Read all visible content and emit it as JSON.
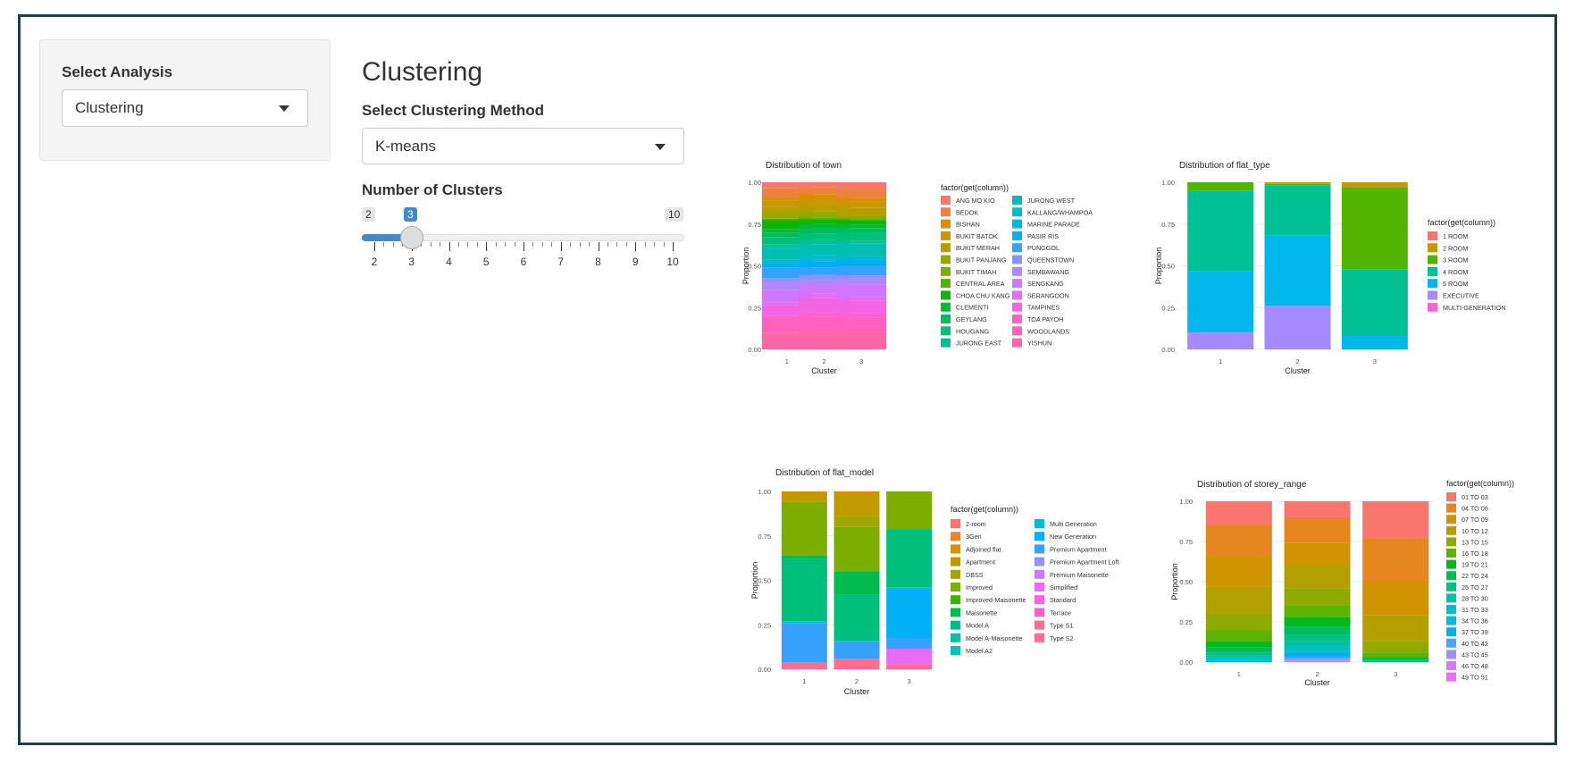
{
  "sidebar": {
    "label": "Select Analysis",
    "selected": "Clustering"
  },
  "main": {
    "title": "Clustering",
    "method_label": "Select Clustering Method",
    "method_selected": "K-means",
    "clusters_label": "Number of Clusters",
    "slider": {
      "min": 2,
      "max": 10,
      "value": 3,
      "min_label": "2",
      "max_label": "10",
      "value_label": "3",
      "tick_labels": [
        "2",
        "3",
        "4",
        "5",
        "6",
        "7",
        "8",
        "9",
        "10"
      ]
    }
  },
  "chart_data": [
    {
      "type": "bar",
      "title": "Distribution of town",
      "xlabel": "Cluster",
      "ylabel": "Proportion",
      "legend_title": "factor(get(column))",
      "categories": [
        "1",
        "2",
        "3"
      ],
      "ylim": [
        0,
        1
      ],
      "yticks": [
        "0.00",
        "0.25",
        "0.50",
        "0.75",
        "1.00"
      ],
      "series": [
        {
          "name": "ANG MO KIO",
          "color": "#F8766D",
          "values": [
            0.04,
            0.03,
            0.04
          ]
        },
        {
          "name": "BEDOK",
          "color": "#EC823C",
          "values": [
            0.06,
            0.05,
            0.06
          ]
        },
        {
          "name": "BISHAN",
          "color": "#DD8D00",
          "values": [
            0.02,
            0.03,
            0.02
          ]
        },
        {
          "name": "BUKIT BATOK",
          "color": "#C99800",
          "values": [
            0.04,
            0.04,
            0.04
          ]
        },
        {
          "name": "BUKIT MERAH",
          "color": "#B3A000",
          "values": [
            0.04,
            0.04,
            0.05
          ]
        },
        {
          "name": "BUKIT PANJANG",
          "color": "#99A800",
          "values": [
            0.04,
            0.03,
            0.02
          ]
        },
        {
          "name": "BUKIT TIMAH",
          "color": "#7AAE00",
          "values": [
            0.0,
            0.01,
            0.0
          ]
        },
        {
          "name": "CENTRAL AREA",
          "color": "#52B400",
          "values": [
            0.01,
            0.01,
            0.01
          ]
        },
        {
          "name": "CHOA CHU KANG",
          "color": "#0BB702",
          "values": [
            0.06,
            0.03,
            0.03
          ]
        },
        {
          "name": "CLEMENTI",
          "color": "#00BA38",
          "values": [
            0.02,
            0.03,
            0.02
          ]
        },
        {
          "name": "GEYLANG",
          "color": "#00BD5C",
          "values": [
            0.03,
            0.03,
            0.03
          ]
        },
        {
          "name": "HOUGANG",
          "color": "#00C07B",
          "values": [
            0.05,
            0.04,
            0.05
          ]
        },
        {
          "name": "JURONG EAST",
          "color": "#00C097",
          "values": [
            0.02,
            0.03,
            0.02
          ]
        },
        {
          "name": "JURONG WEST",
          "color": "#00BFB2",
          "values": [
            0.08,
            0.07,
            0.08
          ]
        },
        {
          "name": "KALLANG/WHAMPOA",
          "color": "#00BCCA",
          "values": [
            0.02,
            0.03,
            0.02
          ]
        },
        {
          "name": "MARINE PARADE",
          "color": "#00B6DE",
          "values": [
            0.0,
            0.01,
            0.0
          ]
        },
        {
          "name": "PASIR RIS",
          "color": "#00AEF2",
          "values": [
            0.03,
            0.04,
            0.04
          ]
        },
        {
          "name": "PUNGGOL",
          "color": "#35A2FF",
          "values": [
            0.07,
            0.05,
            0.06
          ]
        },
        {
          "name": "QUEENSTOWN",
          "color": "#8A94FF",
          "values": [
            0.02,
            0.03,
            0.02
          ]
        },
        {
          "name": "SEMBAWANG",
          "color": "#B385FF",
          "values": [
            0.06,
            0.04,
            0.04
          ]
        },
        {
          "name": "SENGKANG",
          "color": "#D177FF",
          "values": [
            0.08,
            0.05,
            0.08
          ]
        },
        {
          "name": "SERANGOON",
          "color": "#E76BF3",
          "values": [
            0.02,
            0.03,
            0.02
          ]
        },
        {
          "name": "TAMPINES",
          "color": "#F564E3",
          "values": [
            0.07,
            0.09,
            0.08
          ]
        },
        {
          "name": "TOA PAYOH",
          "color": "#FD61D1",
          "values": [
            0.02,
            0.03,
            0.03
          ]
        },
        {
          "name": "WOODLANDS",
          "color": "#FF61BC",
          "values": [
            0.09,
            0.1,
            0.09
          ]
        },
        {
          "name": "YISHUN",
          "color": "#FF67A4",
          "values": [
            0.11,
            0.11,
            0.11
          ]
        }
      ]
    },
    {
      "type": "bar",
      "title": "Distribution of flat_type",
      "xlabel": "Cluster",
      "ylabel": "Proportion",
      "legend_title": "factor(get(column))",
      "categories": [
        "1",
        "2",
        "3"
      ],
      "ylim": [
        0,
        1
      ],
      "yticks": [
        "0.00",
        "0.25",
        "0.50",
        "0.75",
        "1.00"
      ],
      "series": [
        {
          "name": "1 ROOM",
          "color": "#F8766D",
          "values": [
            0.0,
            0.0,
            0.0
          ]
        },
        {
          "name": "2 ROOM",
          "color": "#C49A00",
          "values": [
            0.0,
            0.01,
            0.03
          ]
        },
        {
          "name": "3 ROOM",
          "color": "#53B400",
          "values": [
            0.05,
            0.01,
            0.49
          ]
        },
        {
          "name": "4 ROOM",
          "color": "#00C094",
          "values": [
            0.48,
            0.3,
            0.4
          ]
        },
        {
          "name": "5 ROOM",
          "color": "#00B6EB",
          "values": [
            0.37,
            0.42,
            0.08
          ]
        },
        {
          "name": "EXECUTIVE",
          "color": "#A58AFF",
          "values": [
            0.1,
            0.26,
            0.0
          ]
        },
        {
          "name": "MULTI-GENERATION",
          "color": "#FB61D7",
          "values": [
            0.0,
            0.0,
            0.0
          ]
        }
      ]
    },
    {
      "type": "bar",
      "title": "Distribution of flat_model",
      "xlabel": "Cluster",
      "ylabel": "Proportion",
      "legend_title": "factor(get(column))",
      "categories": [
        "1",
        "2",
        "3"
      ],
      "ylim": [
        0,
        1
      ],
      "yticks": [
        "0.00",
        "0.25",
        "0.50",
        "0.75",
        "1.00"
      ],
      "series": [
        {
          "name": "2-room",
          "color": "#F8766D",
          "values": [
            0.0,
            0.0,
            0.0
          ]
        },
        {
          "name": "3Gen",
          "color": "#EA8331",
          "values": [
            0.0,
            0.0,
            0.0
          ]
        },
        {
          "name": "Adjoined flat",
          "color": "#D89000",
          "values": [
            0.01,
            0.02,
            0.0
          ]
        },
        {
          "name": "Apartment",
          "color": "#C09B00",
          "values": [
            0.05,
            0.12,
            0.0
          ]
        },
        {
          "name": "DBSS",
          "color": "#A3A500",
          "values": [
            0.0,
            0.06,
            0.0
          ]
        },
        {
          "name": "Improved",
          "color": "#7CAE00",
          "values": [
            0.3,
            0.25,
            0.22
          ]
        },
        {
          "name": "Improved-Maisonette",
          "color": "#39B600",
          "values": [
            0.0,
            0.0,
            0.0
          ]
        },
        {
          "name": "Maisonette",
          "color": "#00BB4E",
          "values": [
            0.02,
            0.13,
            0.0
          ]
        },
        {
          "name": "Model A",
          "color": "#00BF7D",
          "values": [
            0.35,
            0.26,
            0.34
          ]
        },
        {
          "name": "Model A-Maisonette",
          "color": "#00C1A3",
          "values": [
            0.0,
            0.0,
            0.0
          ]
        },
        {
          "name": "Model A2",
          "color": "#00BFC4",
          "values": [
            0.01,
            0.0,
            0.01
          ]
        },
        {
          "name": "Multi Generation",
          "color": "#00BAE0",
          "values": [
            0.0,
            0.0,
            0.0
          ]
        },
        {
          "name": "New Generation",
          "color": "#00B0F6",
          "values": [
            0.0,
            0.0,
            0.29
          ]
        },
        {
          "name": "Premium Apartment",
          "color": "#35A2FF",
          "values": [
            0.22,
            0.1,
            0.06
          ]
        },
        {
          "name": "Premium Apartment Loft",
          "color": "#9590FF",
          "values": [
            0.0,
            0.0,
            0.0
          ]
        },
        {
          "name": "Premium Maisonette",
          "color": "#C77CFF",
          "values": [
            0.0,
            0.0,
            0.0
          ]
        },
        {
          "name": "Simplified",
          "color": "#E76BF3",
          "values": [
            0.0,
            0.0,
            0.09
          ]
        },
        {
          "name": "Standard",
          "color": "#FA62DB",
          "values": [
            0.0,
            0.0,
            0.0
          ]
        },
        {
          "name": "Terrace",
          "color": "#FF62BC",
          "values": [
            0.0,
            0.0,
            0.0
          ]
        },
        {
          "name": "Type S1",
          "color": "#FF6C91",
          "values": [
            0.04,
            0.06,
            0.03
          ]
        },
        {
          "name": "Type S2",
          "color": "#FF6C91",
          "values": [
            0.0,
            0.0,
            0.0
          ]
        }
      ]
    },
    {
      "type": "bar",
      "title": "Distribution of storey_range",
      "xlabel": "Cluster",
      "ylabel": "Proportion",
      "legend_title": "factor(get(column))",
      "categories": [
        "1",
        "2",
        "3"
      ],
      "ylim": [
        0,
        1
      ],
      "yticks": [
        "0.00",
        "0.25",
        "0.50",
        "0.75",
        "1.00"
      ],
      "series": [
        {
          "name": "01 TO 03",
          "color": "#F8766D",
          "values": [
            0.15,
            0.1,
            0.23
          ]
        },
        {
          "name": "04 TO 06",
          "color": "#E6861E",
          "values": [
            0.2,
            0.16,
            0.27
          ]
        },
        {
          "name": "07 TO 09",
          "color": "#D09400",
          "values": [
            0.18,
            0.14,
            0.21
          ]
        },
        {
          "name": "10 TO 12",
          "color": "#B2A000",
          "values": [
            0.17,
            0.14,
            0.16
          ]
        },
        {
          "name": "13 TO 15",
          "color": "#8FAA00",
          "values": [
            0.1,
            0.11,
            0.07
          ]
        },
        {
          "name": "16 TO 18",
          "color": "#5EB300",
          "values": [
            0.07,
            0.07,
            0.03
          ]
        },
        {
          "name": "19 TO 21",
          "color": "#00B91E",
          "values": [
            0.04,
            0.06,
            0.01
          ]
        },
        {
          "name": "22 TO 24",
          "color": "#00BC5A",
          "values": [
            0.03,
            0.05,
            0.01
          ]
        },
        {
          "name": "25 TO 27",
          "color": "#00BF82",
          "values": [
            0.02,
            0.04,
            0.01
          ]
        },
        {
          "name": "28 TO 30",
          "color": "#00C0A3",
          "values": [
            0.01,
            0.03,
            0.0
          ]
        },
        {
          "name": "31 TO 33",
          "color": "#00BFC1",
          "values": [
            0.01,
            0.03,
            0.0
          ]
        },
        {
          "name": "34 TO 36",
          "color": "#00B9DB",
          "values": [
            0.01,
            0.02,
            0.0
          ]
        },
        {
          "name": "37 TO 39",
          "color": "#00AFF3",
          "values": [
            0.01,
            0.02,
            0.0
          ]
        },
        {
          "name": "40 TO 42",
          "color": "#4FA1FF",
          "values": [
            0.0,
            0.01,
            0.0
          ]
        },
        {
          "name": "43 TO 45",
          "color": "#9E91FF",
          "values": [
            0.0,
            0.01,
            0.0
          ]
        },
        {
          "name": "46 TO 48",
          "color": "#CC80FF",
          "values": [
            0.0,
            0.01,
            0.0
          ]
        },
        {
          "name": "49 TO 51",
          "color": "#EC6FEC",
          "values": [
            0.0,
            0.0,
            0.0
          ]
        }
      ]
    }
  ]
}
